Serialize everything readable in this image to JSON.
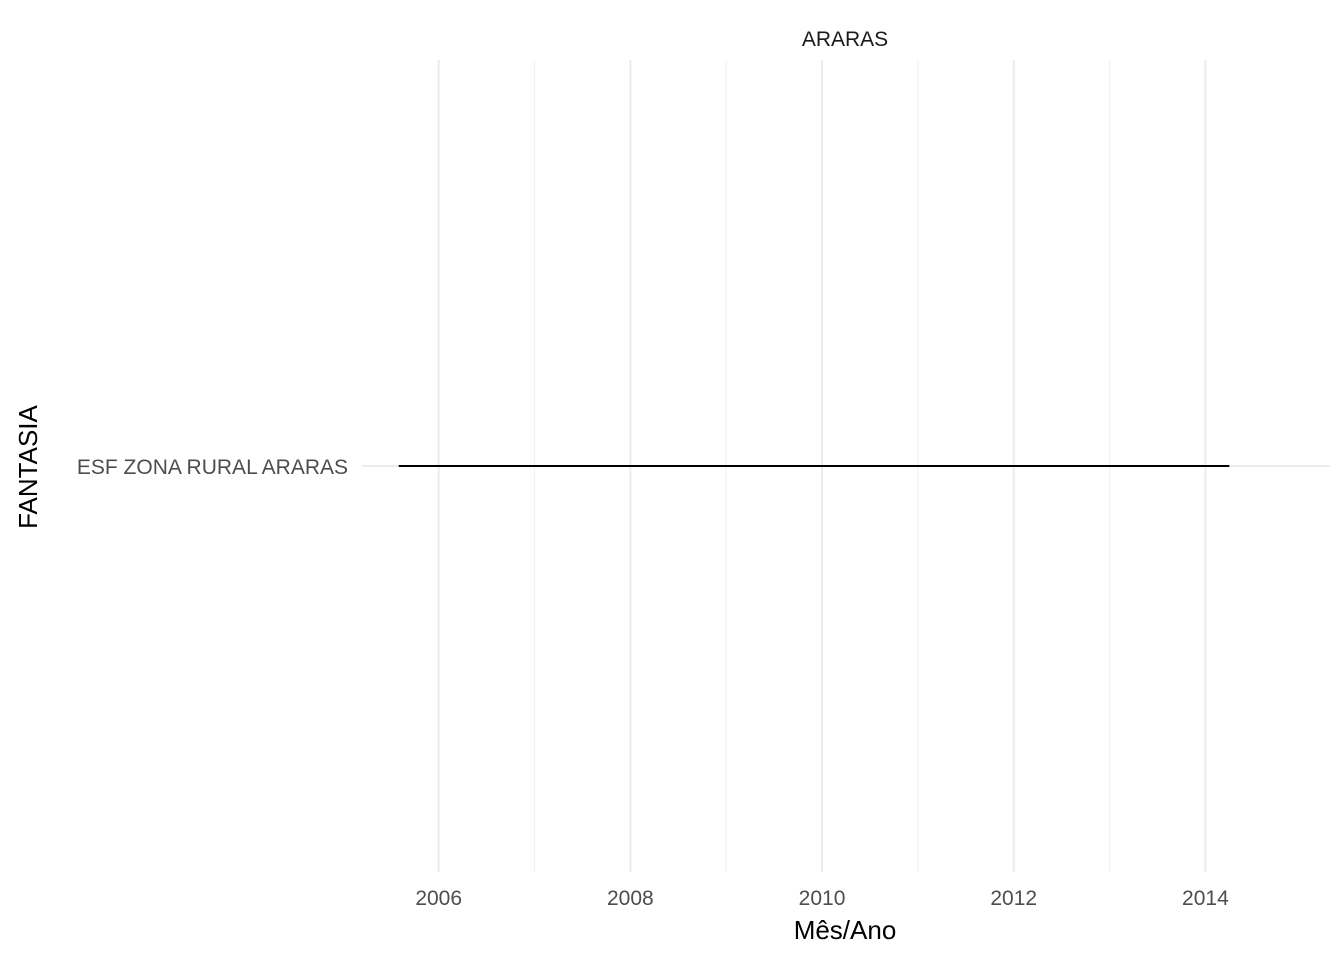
{
  "chart_data": {
    "type": "line",
    "facet": "ARARAS",
    "xlabel": "Mês/Ano",
    "ylabel": "FANTASIA",
    "x_ticks": [
      "2006",
      "2008",
      "2010",
      "2012",
      "2014"
    ],
    "x_tick_values": [
      2006,
      2008,
      2010,
      2012,
      2014
    ],
    "x_minor_values": [
      2007,
      2009,
      2011,
      2013
    ],
    "xlim": [
      2005.2,
      2015.3
    ],
    "categories": [
      "ESF ZONA RURAL ARARAS"
    ],
    "series": [
      {
        "category": "ESF ZONA RURAL ARARAS",
        "x": [
          "2005-08",
          "2014-04"
        ]
      }
    ],
    "grid": true,
    "colors": {
      "line": "#000000",
      "grid_major": "#ebebeb",
      "grid_minor": "#f2f2f2",
      "tick_text": "#4d4d4d"
    }
  }
}
